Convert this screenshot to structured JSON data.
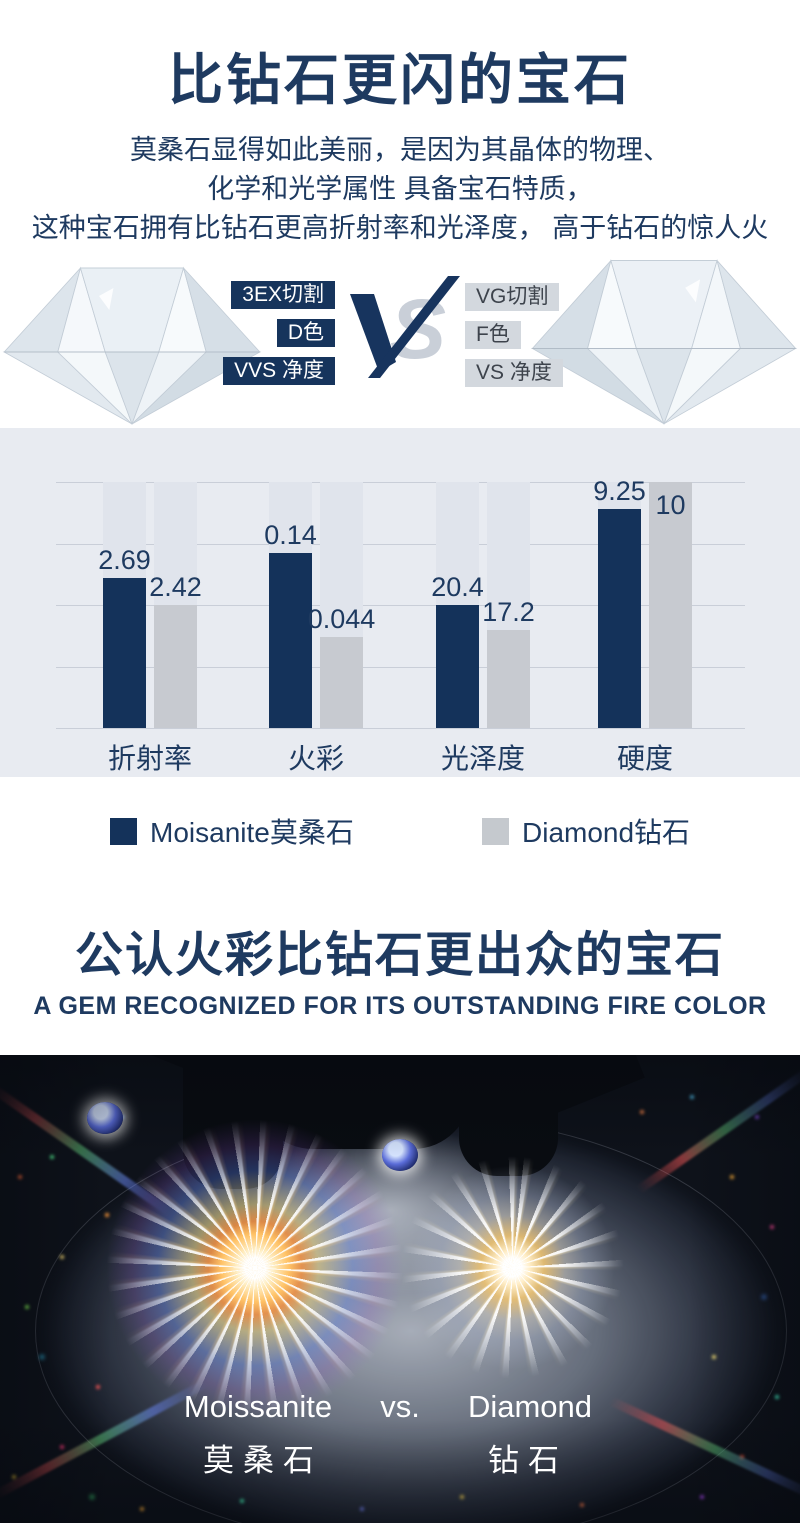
{
  "header": {
    "title": "比钻石更闪的宝石",
    "subtitle_lines": [
      "莫桑石显得如此美丽，是因为其晶体的物理、",
      "化学和光学属性 具备宝石特质，",
      "这种宝石拥有比钻石更高折射率和光泽度， 高于钻石的惊人火"
    ]
  },
  "comparison": {
    "vs_v": "V",
    "vs_s": "S",
    "left_badges": [
      "3EX切割",
      "D色",
      "VVS 净度"
    ],
    "right_badges": [
      "VG切割",
      "F色",
      "VS 净度"
    ]
  },
  "chart_data": {
    "type": "bar",
    "title": "",
    "categories": [
      "折射率",
      "火彩",
      "光泽度",
      "硬度"
    ],
    "series": [
      {
        "name": "Moisanite莫桑石",
        "color": "#14325a",
        "values": [
          2.69,
          0.14,
          20.4,
          9.25
        ],
        "labels": [
          "2.69",
          "0.14",
          "20.4",
          "9.25"
        ],
        "display_heights_frac": [
          0.61,
          0.71,
          0.5,
          0.89
        ]
      },
      {
        "name": "Diamond钻石",
        "color": "#c7cad0",
        "values": [
          2.42,
          0.044,
          17.2,
          10
        ],
        "labels": [
          "2.42",
          "0.044",
          "17.2",
          "10"
        ],
        "display_heights_frac": [
          0.5,
          0.37,
          0.4,
          1.0
        ]
      }
    ],
    "grid": true,
    "legend_position": "bottom"
  },
  "legend": {
    "items": [
      {
        "label": "Moisanite莫桑石",
        "color": "#14325a"
      },
      {
        "label": "Diamond钻石",
        "color": "#c5c9ce"
      }
    ]
  },
  "fire_section": {
    "title": "公认火彩比钻石更出众的宝石",
    "subtitle": "A GEM RECOGNIZED FOR ITS OUTSTANDING FIRE COLOR"
  },
  "photo": {
    "left_name_en": "Moissanite",
    "vs_label": "vs.",
    "right_name_en": "Diamond",
    "left_name_cn": "莫桑石",
    "right_name_cn": "钻石"
  },
  "colors": {
    "navy_text": "#1e3a60",
    "navy_bar": "#14325a",
    "gray_bar": "#c7cad0",
    "chart_bg": "#e8ebf1",
    "badge_gray_bg": "#d3d8de"
  }
}
